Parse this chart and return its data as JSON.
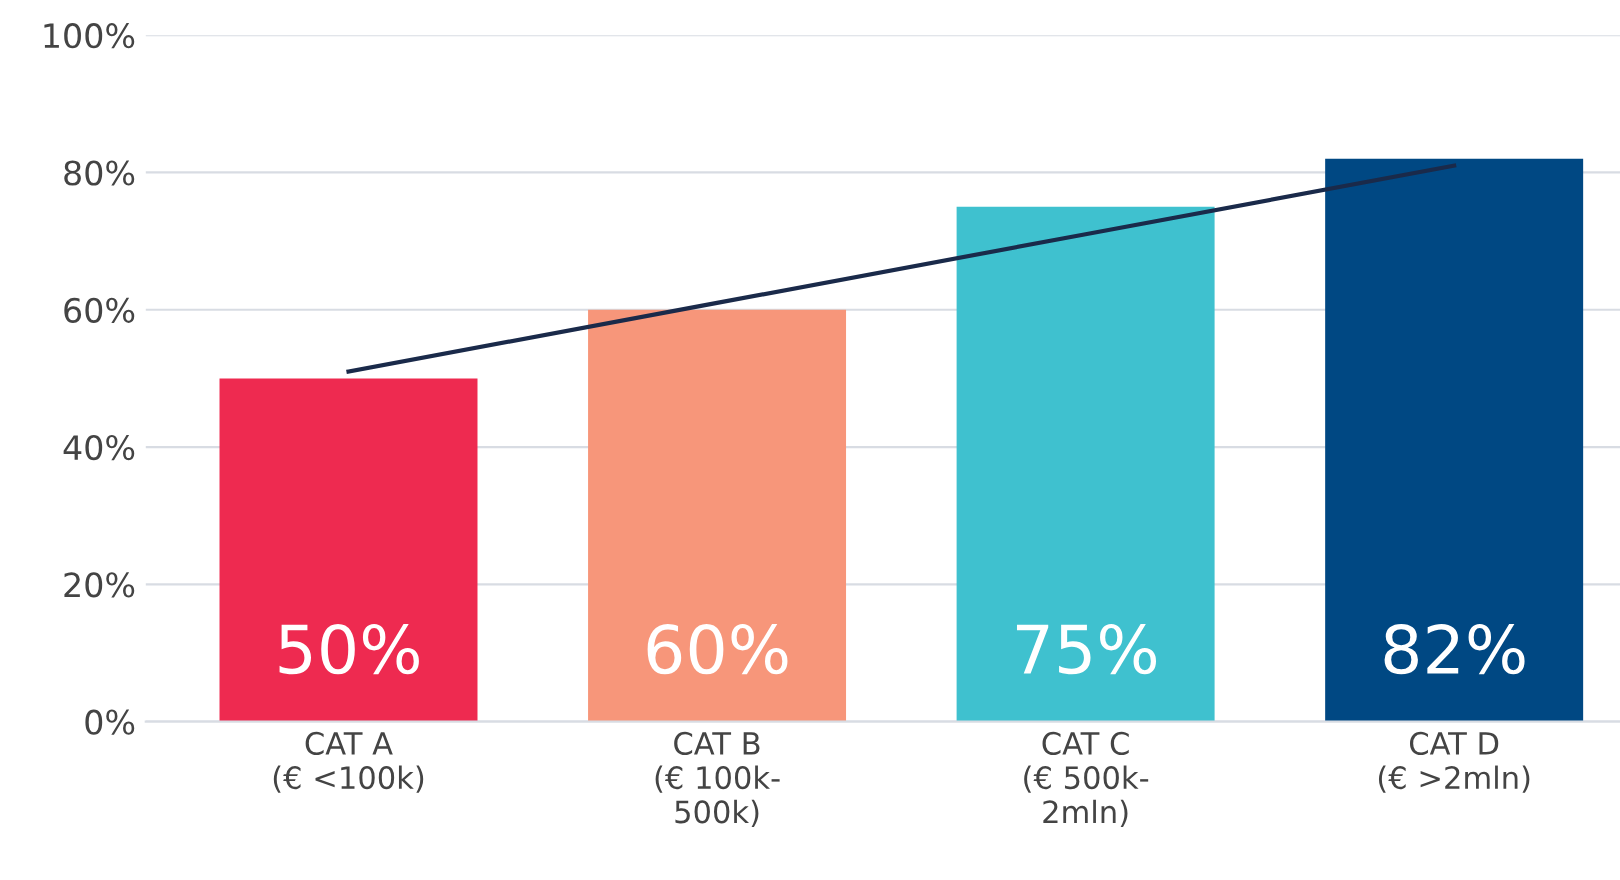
{
  "chart_data": {
    "type": "bar",
    "categories": [
      "CAT A\n(€ <100k)",
      "CAT B\n(€ 100k-\n500k)",
      "CAT C\n(€ 500k-\n2mln)",
      "CAT D\n(€ >2mln)"
    ],
    "values": [
      50,
      60,
      75,
      82
    ],
    "colors": [
      "#ee2a50",
      "#f7967a",
      "#3fc1cf",
      "#004883"
    ],
    "value_labels": [
      "50%",
      "60%",
      "75%",
      "82%"
    ],
    "series": [
      {
        "type": "line",
        "values": [
          51,
          61,
          71,
          81
        ],
        "color": "#1a2a4a"
      }
    ],
    "ylim": [
      0,
      100
    ],
    "yticks": [
      {
        "value": 0,
        "label": "0%"
      },
      {
        "value": 20,
        "label": "20%"
      },
      {
        "value": 40,
        "label": "40%"
      },
      {
        "value": 60,
        "label": "60%"
      },
      {
        "value": 80,
        "label": "80%"
      },
      {
        "value": 100,
        "label": "100%"
      }
    ],
    "grid": "y",
    "legend": false
  }
}
